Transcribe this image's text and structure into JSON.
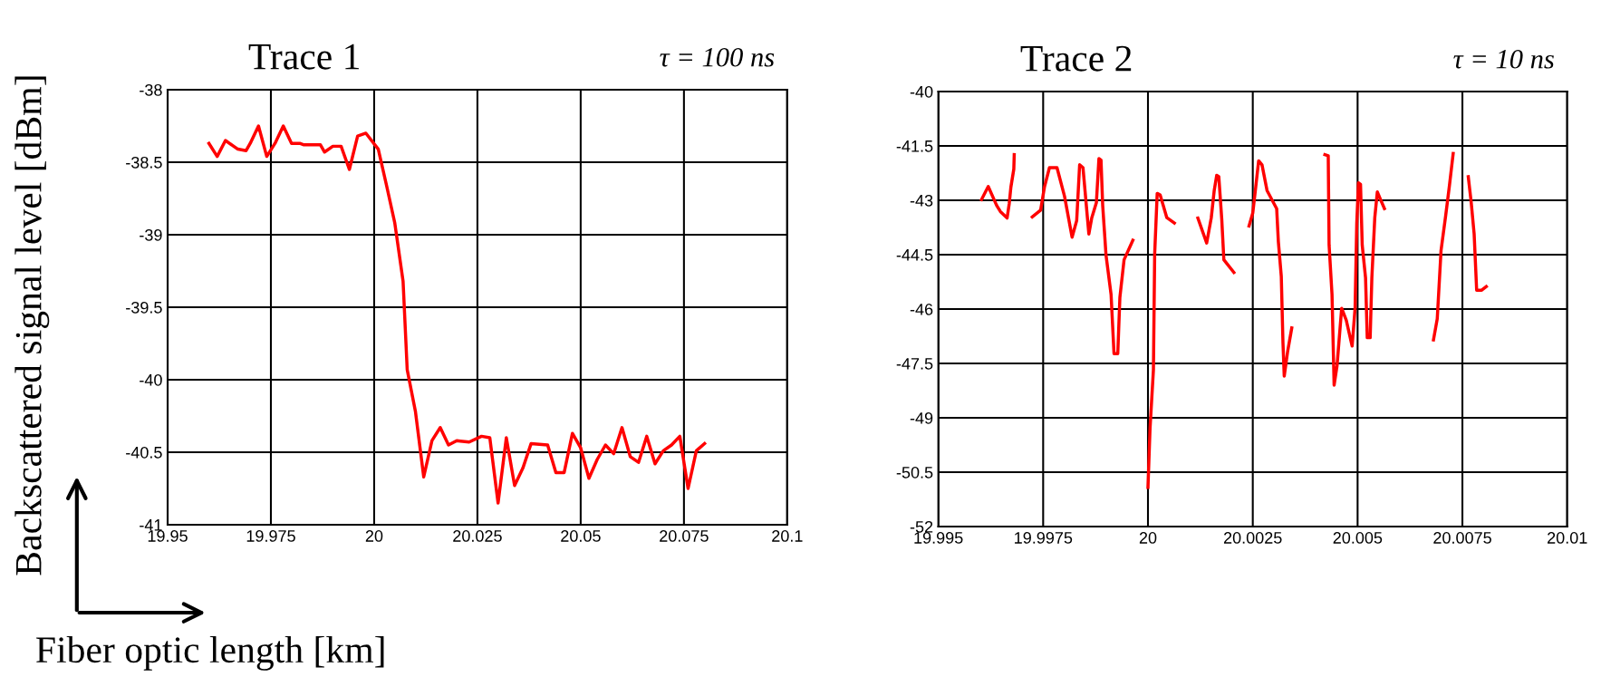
{
  "chart_data": [
    {
      "type": "line",
      "title": "Trace 1",
      "annotations": [
        "τ = 100 ns"
      ],
      "xlabel": "Fiber optic length [km]",
      "ylabel": "Backscattered signal level [dBm]",
      "grid": true,
      "xlim": [
        19.95,
        20.1
      ],
      "xticks": [
        19.95,
        19.975,
        20,
        20.025,
        20.05,
        20.075,
        20.1
      ],
      "ylim": [
        -41,
        -38
      ],
      "yticks": [
        -38,
        -38.5,
        -39,
        -39.5,
        -40,
        -40.5,
        -41
      ],
      "series": [
        {
          "color": "#ff0000",
          "x": [
            19.96,
            19.962,
            19.964,
            19.967,
            19.969,
            19.97,
            19.972,
            19.974,
            19.976,
            19.978,
            19.98,
            19.982,
            19.983,
            19.987,
            19.988,
            19.99,
            19.992,
            19.994,
            19.996,
            19.998,
            20.001,
            20.003,
            20.005,
            20.007,
            20.008,
            20.01,
            20.012,
            20.014,
            20.016,
            20.018,
            20.02,
            20.023,
            20.026,
            20.028,
            20.03,
            20.032,
            20.034,
            20.036,
            20.038,
            20.042,
            20.044,
            20.046,
            20.048,
            20.05,
            20.052,
            20.054,
            20.056,
            20.058,
            20.06,
            20.062,
            20.064,
            20.066,
            20.068,
            20.07,
            20.072,
            20.074,
            20.076,
            20.078,
            20.08
          ],
          "values": [
            -38.37,
            -38.46,
            -38.35,
            -38.41,
            -38.42,
            -38.37,
            -38.25,
            -38.46,
            -38.37,
            -38.25,
            -38.37,
            -38.37,
            -38.38,
            -38.38,
            -38.43,
            -38.39,
            -38.39,
            -38.55,
            -38.32,
            -38.3,
            -38.41,
            -38.66,
            -38.92,
            -39.32,
            -39.93,
            -40.22,
            -40.67,
            -40.42,
            -40.33,
            -40.45,
            -40.42,
            -40.43,
            -40.39,
            -40.4,
            -40.85,
            -40.4,
            -40.73,
            -40.61,
            -40.44,
            -40.45,
            -40.64,
            -40.64,
            -40.37,
            -40.47,
            -40.68,
            -40.55,
            -40.45,
            -40.51,
            -40.33,
            -40.53,
            -40.57,
            -40.39,
            -40.58,
            -40.49,
            -40.45,
            -40.39,
            -40.75,
            -40.49,
            -40.44
          ]
        }
      ]
    },
    {
      "type": "line",
      "title": "Trace 2",
      "annotations": [
        "τ = 10 ns"
      ],
      "grid": true,
      "xlim": [
        19.995,
        20.01
      ],
      "xticks": [
        19.995,
        19.9975,
        20,
        20.0025,
        20.005,
        20.0075,
        20.01
      ],
      "ylim": [
        -52,
        -40
      ],
      "yticks": [
        -40,
        -41.5,
        -43,
        -44.5,
        -46,
        -47.5,
        -49,
        -50.5,
        -52
      ],
      "series": [
        {
          "color": "#ff0000",
          "x": [
            19.99603,
            19.99619,
            19.99639,
            19.99648,
            19.99664,
            19.99669,
            19.99673,
            19.9968,
            19.99681
          ],
          "values": [
            -42.98,
            -42.62,
            -43.14,
            -43.31,
            -43.49,
            -43.1,
            -42.64,
            -42.14,
            -41.74
          ]
        },
        {
          "color": "#ff0000",
          "x": [
            19.99724,
            19.99744,
            19.99753,
            19.99765,
            19.99783,
            19.99801,
            19.99819,
            19.9983,
            19.99837,
            19.99845,
            19.99859,
            19.99866,
            19.99877,
            19.99883,
            19.99888,
            19.99892,
            19.999,
            19.99912,
            19.99919,
            19.99928,
            19.99933,
            19.99943,
            19.99964
          ],
          "values": [
            -43.46,
            -43.27,
            -42.64,
            -42.1,
            -42.1,
            -42.89,
            -44.02,
            -43.56,
            -42.02,
            -42.1,
            -43.93,
            -43.48,
            -43.06,
            -41.85,
            -41.89,
            -43.14,
            -44.52,
            -45.6,
            -47.23,
            -47.23,
            -45.68,
            -44.64,
            -44.1
          ]
        },
        {
          "color": "#ff0000",
          "x": [
            20.0,
            20.00005,
            20.00013,
            20.00016,
            20.00022,
            20.00029,
            20.00045,
            20.00063
          ],
          "values": [
            -50.92,
            -49.27,
            -47.68,
            -44.48,
            -42.81,
            -42.85,
            -43.48,
            -43.63
          ]
        },
        {
          "color": "#ff0000",
          "x": [
            20.00119,
            20.0014,
            20.00151,
            20.00158,
            20.00164,
            20.00169,
            20.00176,
            20.00181,
            20.00205
          ],
          "values": [
            -43.49,
            -44.18,
            -43.48,
            -42.73,
            -42.31,
            -42.35,
            -43.52,
            -44.64,
            -44.99
          ]
        },
        {
          "color": "#ff0000",
          "x": [
            20.00241,
            20.0025,
            20.00257,
            20.00264,
            20.00272,
            20.00284,
            20.00307,
            20.00311,
            20.00318,
            20.00322,
            20.00325,
            20.00333,
            20.00343
          ],
          "values": [
            -43.71,
            -43.35,
            -42.64,
            -41.91,
            -42.02,
            -42.73,
            -43.23,
            -44.14,
            -45.1,
            -46.93,
            -47.85,
            -47.18,
            -46.52
          ]
        },
        {
          "color": "#ff0000",
          "x": [
            20.00422,
            20.0043,
            20.00432,
            20.00439,
            20.00444,
            20.00451,
            20.00462,
            20.00473,
            20.00487,
            20.00494,
            20.00498,
            20.00502,
            20.00507,
            20.00511,
            20.00519,
            20.00523,
            20.0053,
            20.00534,
            20.00541,
            20.00547,
            20.00564
          ],
          "values": [
            -41.74,
            -41.77,
            -44.23,
            -45.6,
            -48.1,
            -47.56,
            -45.98,
            -46.31,
            -47.02,
            -45.98,
            -43.64,
            -42.52,
            -42.56,
            -44.23,
            -45.14,
            -46.79,
            -46.79,
            -45.14,
            -43.48,
            -42.77,
            -43.23
          ]
        },
        {
          "color": "#ff0000",
          "x": [
            20.00681,
            20.0069,
            20.00699,
            20.0071,
            20.00719,
            20.00728
          ],
          "values": [
            -46.85,
            -46.27,
            -44.39,
            -43.43,
            -42.6,
            -41.71
          ]
        },
        {
          "color": "#ff0000",
          "x": [
            20.00764,
            20.00771,
            20.00778,
            20.00784,
            20.00796,
            20.00807
          ],
          "values": [
            -42.35,
            -43.06,
            -43.93,
            -45.48,
            -45.48,
            -45.38
          ]
        }
      ]
    }
  ]
}
